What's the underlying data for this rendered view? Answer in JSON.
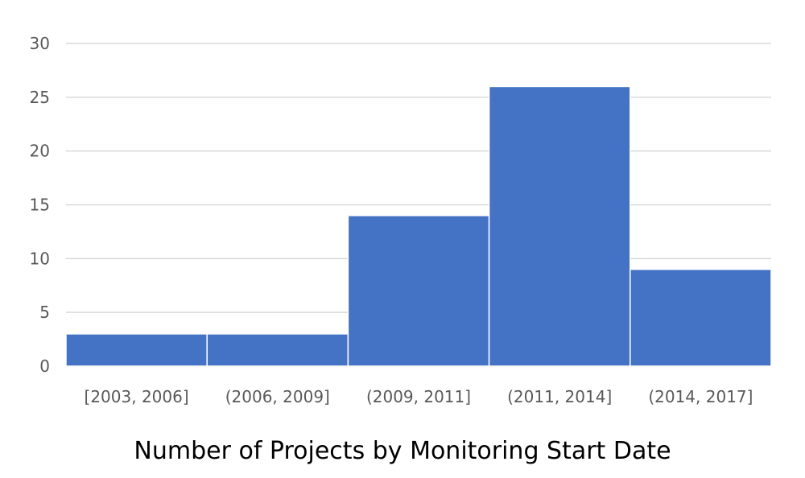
{
  "chart_data": {
    "type": "bar",
    "title": "Number of Projects by Monitoring Start Date",
    "xlabel": "",
    "ylabel": "",
    "categories": [
      "[2003, 2006]",
      "(2006, 2009]",
      "(2009, 2011]",
      "(2011, 2014]",
      "(2014, 2017]"
    ],
    "values": [
      3,
      3,
      14,
      26,
      9
    ],
    "ylim": [
      0,
      30
    ],
    "yticks": [
      0,
      5,
      10,
      15,
      20,
      25,
      30
    ],
    "grid": true,
    "legend": "none",
    "bar_color": "#4472c4"
  }
}
